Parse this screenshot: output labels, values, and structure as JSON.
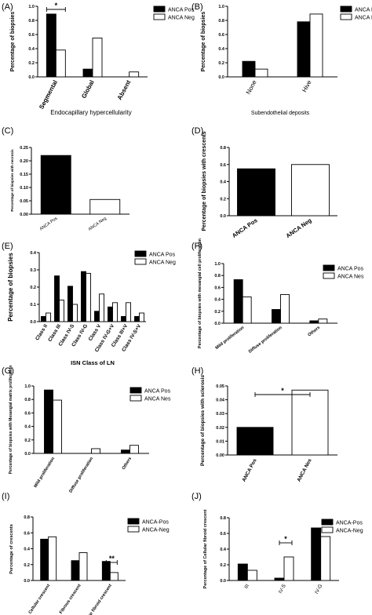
{
  "chart_data": [
    {
      "panel": "(A)",
      "type": "bar",
      "categories": [
        "Segmental",
        "Global",
        "Absent"
      ],
      "series": [
        {
          "name": "ANCA Pos",
          "values": [
            0.89,
            0.11,
            0.0
          ],
          "color": "#000000"
        },
        {
          "name": "ANCA Neg",
          "values": [
            0.38,
            0.55,
            0.07
          ],
          "color": "#ffffff"
        }
      ],
      "ylabel": "Percentage of biopsies",
      "xlabel": "Endocapillary hypercellularity",
      "ylim": [
        0,
        1.0
      ],
      "yticks": [
        "0.0",
        "0.2",
        "0.4",
        "0.6",
        "0.8",
        "1.0"
      ],
      "annotation": "*",
      "legend": "top-right"
    },
    {
      "panel": "(B)",
      "type": "bar",
      "categories": [
        "None",
        "Hive"
      ],
      "series": [
        {
          "name": "ANCA Pos",
          "values": [
            0.22,
            0.78
          ],
          "color": "#000000"
        },
        {
          "name": "ANCA Neg",
          "values": [
            0.11,
            0.89
          ],
          "color": "#ffffff"
        }
      ],
      "ylabel": "Percentage of biopsies",
      "xlabel": "Subendothelial deposits",
      "ylim": [
        0,
        1.0
      ],
      "yticks": [
        "0.0",
        "0.2",
        "0.4",
        "0.6",
        "0.8",
        "1.0"
      ],
      "legend": "top-right"
    },
    {
      "panel": "(C)",
      "type": "bar",
      "categories": [
        "ANCA Pos",
        "ANCA Neg"
      ],
      "series": [
        {
          "name": "",
          "values": [
            0.22,
            0.055
          ]
        }
      ],
      "ylabel": "Percentage of biopsies with necrosis",
      "ylim": [
        0,
        0.25
      ],
      "yticks": [
        "0.00",
        "0.05",
        "0.10",
        "0.15",
        "0.20",
        "0.25"
      ]
    },
    {
      "panel": "(D)",
      "type": "bar",
      "categories": [
        "ANCA Pos",
        "ANCA Neg"
      ],
      "series": [
        {
          "name": "",
          "values": [
            0.55,
            0.6
          ]
        }
      ],
      "ylabel": "Percentage of biopsies with crescents",
      "ylim": [
        0,
        0.8
      ],
      "yticks": [
        "0.0",
        "0.2",
        "0.4",
        "0.6",
        "0.8"
      ]
    },
    {
      "panel": "(E)",
      "type": "bar",
      "categories": [
        "Class II",
        "Class III",
        "Class IV-S",
        "Class IV-G",
        "Class V",
        "Class IV-G+V",
        "Class III+V",
        "Class IV-S+V"
      ],
      "series": [
        {
          "name": "ANCA Pos",
          "values": [
            0.03,
            0.265,
            0.205,
            0.29,
            0.06,
            0.085,
            0.03,
            0.03
          ],
          "color": "#000000"
        },
        {
          "name": "ANCA Neg",
          "values": [
            0.05,
            0.125,
            0.1,
            0.28,
            0.16,
            0.11,
            0.11,
            0.05
          ],
          "color": "#ffffff"
        }
      ],
      "ylabel": "Percentage of biopsies",
      "xlabel": "ISN Class of LN",
      "ylim": [
        0,
        0.4
      ],
      "yticks": [
        "0.0",
        "0.1",
        "0.2",
        "0.3",
        "0.4"
      ],
      "legend": "top-right"
    },
    {
      "panel": "(F)",
      "type": "bar",
      "categories": [
        "Mild proliferation",
        "Diffuse proliferation",
        "Others"
      ],
      "series": [
        {
          "name": "ANCA Pos",
          "values": [
            0.73,
            0.23,
            0.04
          ],
          "color": "#000000"
        },
        {
          "name": "ANCA Nes",
          "values": [
            0.44,
            0.48,
            0.07
          ],
          "color": "#ffffff"
        }
      ],
      "ylabel": "Percentage of biopsies with mesangial cell proliferation",
      "ylim": [
        0,
        1.0
      ],
      "yticks": [
        "0.0",
        "0.2",
        "0.4",
        "0.6",
        "0.8",
        "1.0"
      ],
      "legend": "top-right"
    },
    {
      "panel": "(G)",
      "type": "bar",
      "categories": [
        "Mild proliferation",
        "Diffuse proliferation",
        "Others"
      ],
      "series": [
        {
          "name": "ANCA Pos",
          "values": [
            0.94,
            0.0,
            0.05
          ],
          "color": "#000000"
        },
        {
          "name": "ANCA Nes",
          "values": [
            0.79,
            0.07,
            0.12
          ],
          "color": "#ffffff"
        }
      ],
      "ylabel": "Percentage of biopsies with Mesangial matrix proliferation",
      "ylim": [
        0,
        1.0
      ],
      "yticks": [
        "0.0",
        "0.2",
        "0.4",
        "0.6",
        "0.8",
        "1.0"
      ],
      "legend": "top-right"
    },
    {
      "panel": "(H)",
      "type": "bar",
      "categories": [
        "ANCA Pos",
        "ANCA Nes"
      ],
      "series": [
        {
          "name": "",
          "values": [
            0.02,
            0.047
          ]
        }
      ],
      "ylabel": "Percentage of biopsies with sclerosis",
      "ylim": [
        0,
        0.05
      ],
      "yticks": [
        "0.00",
        "0.01",
        "0.02",
        "0.03",
        "0.04",
        "0.05"
      ],
      "annotation": "*"
    },
    {
      "panel": "(I)",
      "type": "bar",
      "categories": [
        "Cellular crescent",
        "Fibrous crescent",
        "Cellular fibroid crescent"
      ],
      "series": [
        {
          "name": "ANCA-Pos",
          "values": [
            0.52,
            0.25,
            0.24
          ],
          "color": "#000000"
        },
        {
          "name": "ANCA-Neg",
          "values": [
            0.55,
            0.35,
            0.1
          ],
          "color": "#ffffff"
        }
      ],
      "ylabel": "Percentage of crescents",
      "ylim": [
        0,
        0.8
      ],
      "yticks": [
        "0.0",
        "0.2",
        "0.4",
        "0.6",
        "0.8"
      ],
      "annotation": "**",
      "legend": "top-right"
    },
    {
      "panel": "(J)",
      "type": "bar",
      "categories": [
        "III",
        "IV-S",
        "IV-G"
      ],
      "series": [
        {
          "name": "ANCA-Pos",
          "values": [
            0.21,
            0.03,
            0.67
          ],
          "color": "#000000"
        },
        {
          "name": "ANCA-Neg",
          "values": [
            0.13,
            0.3,
            0.56
          ],
          "color": "#ffffff"
        }
      ],
      "ylabel": "Percentage of Cellular fibroid crescent",
      "ylim": [
        0,
        0.8
      ],
      "yticks": [
        "0.0",
        "0.2",
        "0.4",
        "0.6",
        "0.8"
      ],
      "annotation": "*",
      "legend": "top-right"
    }
  ]
}
